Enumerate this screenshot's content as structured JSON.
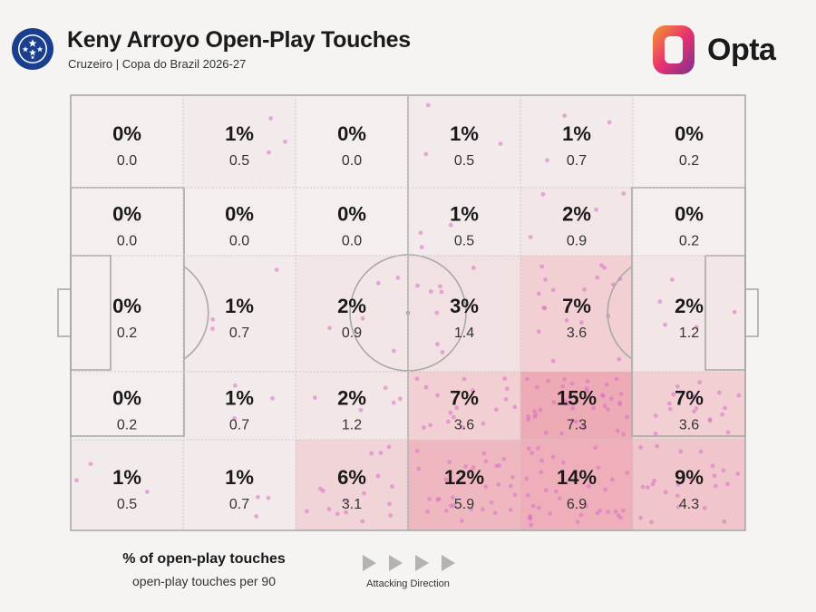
{
  "header": {
    "title": "Keny Arroyo Open-Play Touches",
    "subtitle": "Cruzeiro | Copa do Brazil 2026-27",
    "club_badge_text": "CRUZEIRO ESPORTE CLUBE",
    "brand": "Opta"
  },
  "legend": {
    "title": "% of open-play touches",
    "subtitle": "open-play touches per 90",
    "direction_label": "Attacking Direction"
  },
  "colors": {
    "background": "#f5f4f3",
    "heat_max": "#e87a8c",
    "dot": "#d96fc4",
    "badge_blue": "#1b3f8f",
    "opta_orange": "#f39a2b",
    "opta_pink": "#e8326f"
  },
  "chart_data": {
    "type": "heatmap",
    "columns": 6,
    "rows": 5,
    "cells": [
      [
        {
          "pct": "0%",
          "p90": "0.0"
        },
        {
          "pct": "1%",
          "p90": "0.5"
        },
        {
          "pct": "0%",
          "p90": "0.0"
        },
        {
          "pct": "1%",
          "p90": "0.5"
        },
        {
          "pct": "1%",
          "p90": "0.7"
        },
        {
          "pct": "0%",
          "p90": "0.2"
        }
      ],
      [
        {
          "pct": "0%",
          "p90": "0.0"
        },
        {
          "pct": "0%",
          "p90": "0.0"
        },
        {
          "pct": "0%",
          "p90": "0.0"
        },
        {
          "pct": "1%",
          "p90": "0.5"
        },
        {
          "pct": "2%",
          "p90": "0.9"
        },
        {
          "pct": "0%",
          "p90": "0.2"
        }
      ],
      [
        {
          "pct": "0%",
          "p90": "0.2"
        },
        {
          "pct": "1%",
          "p90": "0.7"
        },
        {
          "pct": "2%",
          "p90": "0.9"
        },
        {
          "pct": "3%",
          "p90": "1.4"
        },
        {
          "pct": "7%",
          "p90": "3.6"
        },
        {
          "pct": "2%",
          "p90": "1.2"
        }
      ],
      [
        {
          "pct": "0%",
          "p90": "0.2"
        },
        {
          "pct": "1%",
          "p90": "0.7"
        },
        {
          "pct": "2%",
          "p90": "1.2"
        },
        {
          "pct": "7%",
          "p90": "3.6"
        },
        {
          "pct": "15%",
          "p90": "7.3"
        },
        {
          "pct": "7%",
          "p90": "3.6"
        }
      ],
      [
        {
          "pct": "1%",
          "p90": "0.5"
        },
        {
          "pct": "1%",
          "p90": "0.7"
        },
        {
          "pct": "6%",
          "p90": "3.1"
        },
        {
          "pct": "12%",
          "p90": "5.9"
        },
        {
          "pct": "14%",
          "p90": "6.9"
        },
        {
          "pct": "9%",
          "p90": "4.3"
        }
      ]
    ]
  }
}
